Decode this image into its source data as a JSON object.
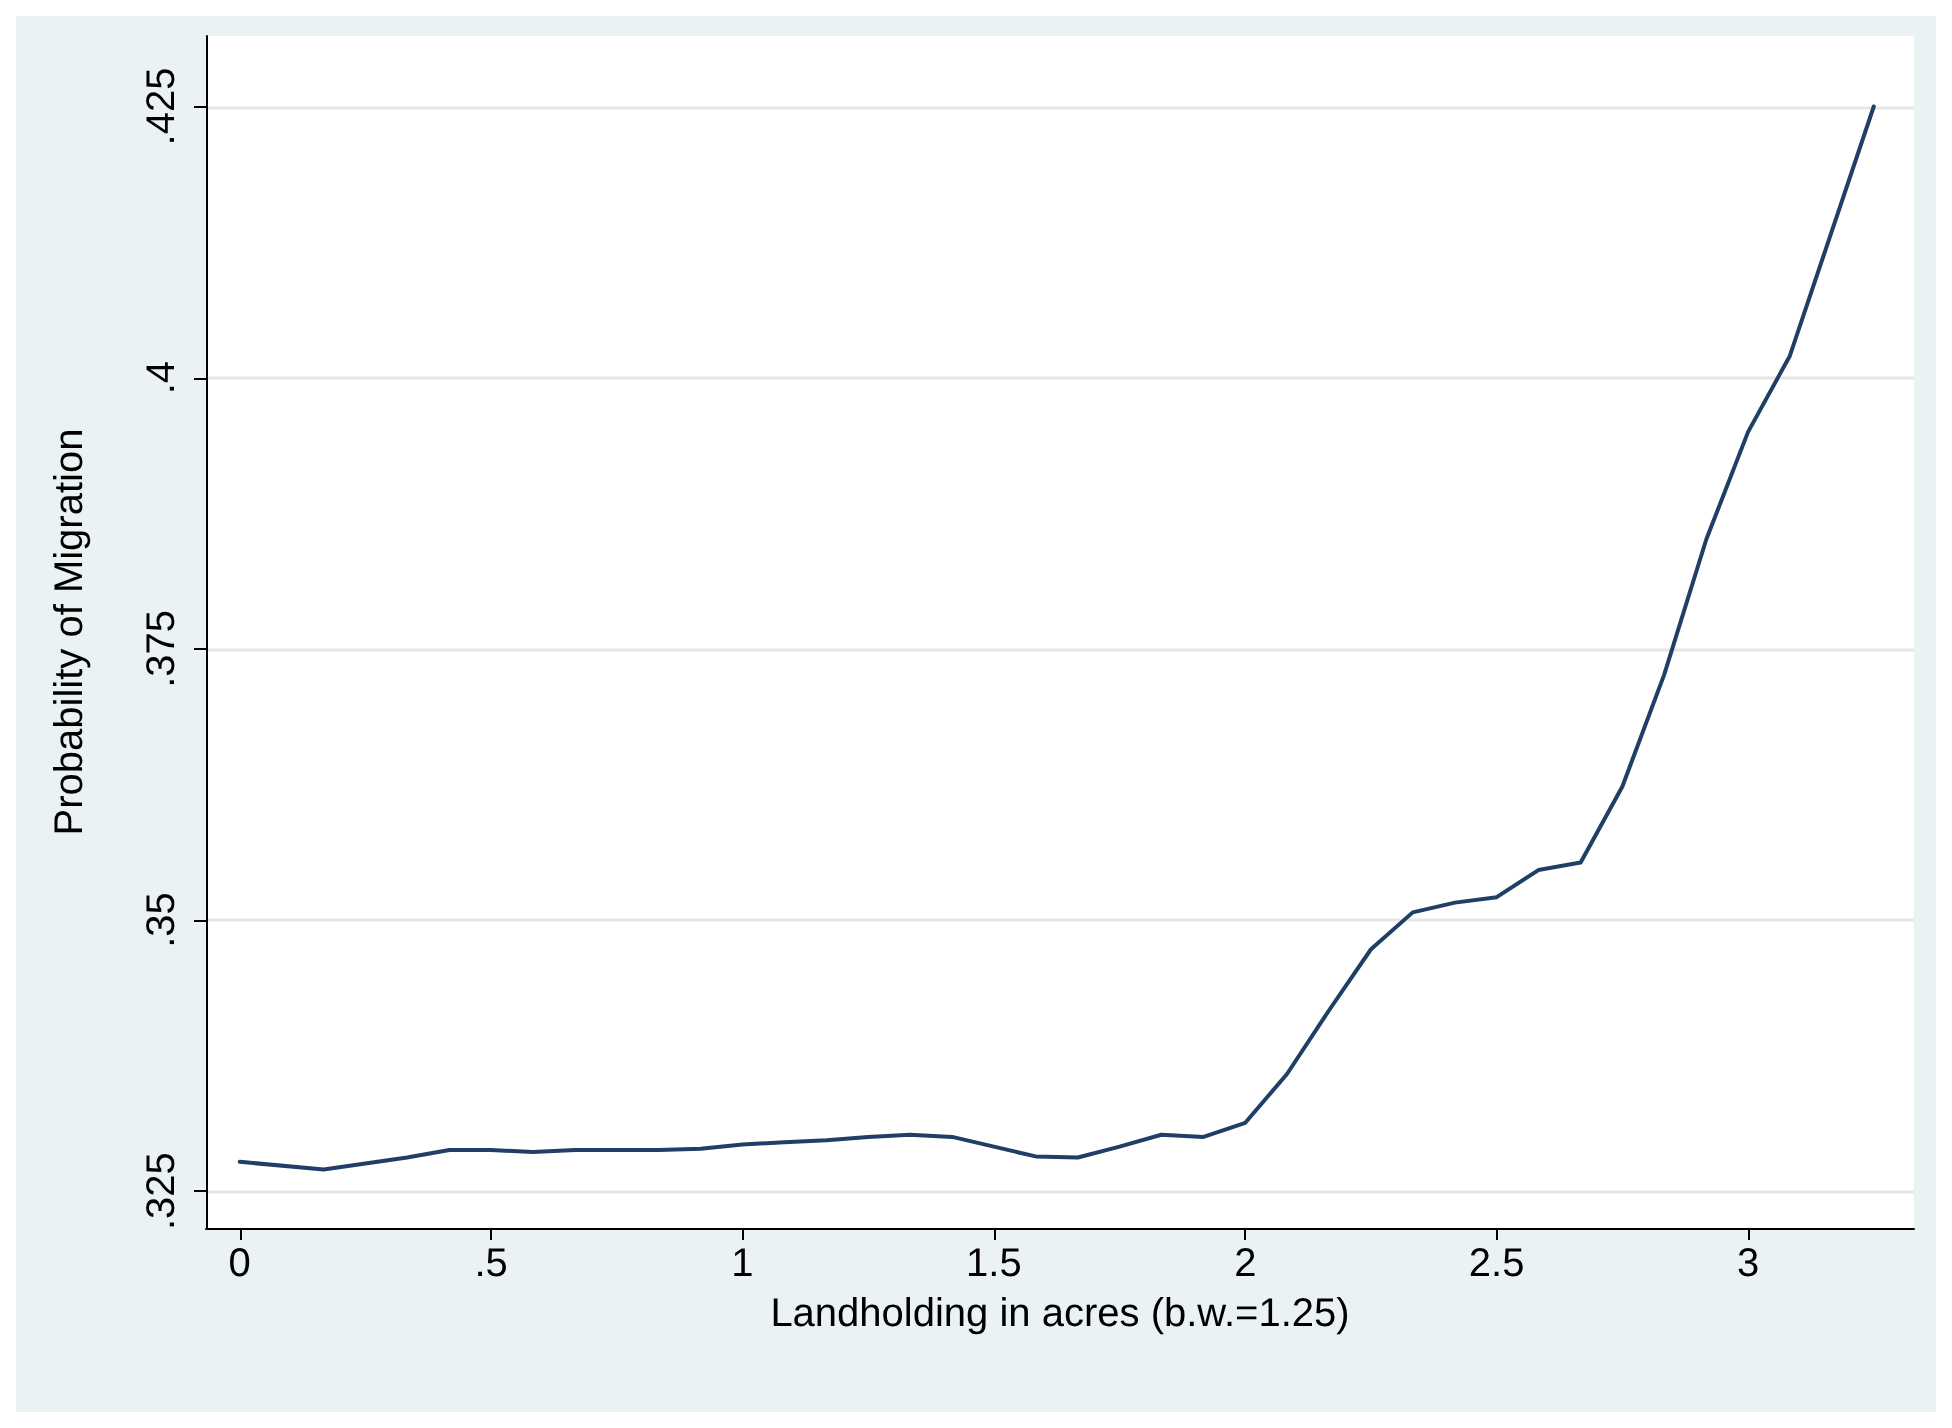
{
  "chart_data": {
    "type": "line",
    "xlabel": "Landholding in acres (b.w.=1.25)",
    "ylabel": "Probability of Migration",
    "x": [
      0,
      0.167,
      0.333,
      0.417,
      0.5,
      0.583,
      0.667,
      0.75,
      0.833,
      0.917,
      1.0,
      1.083,
      1.167,
      1.25,
      1.333,
      1.417,
      1.5,
      1.583,
      1.667,
      1.75,
      1.833,
      1.917,
      2.0,
      2.083,
      2.167,
      2.25,
      2.333,
      2.417,
      2.5,
      2.583,
      2.667,
      2.75,
      2.833,
      2.917,
      3.0,
      3.083,
      3.25
    ],
    "series": [
      {
        "color": "#1f3f66",
        "values": [
          0.3277,
          0.327,
          0.3281,
          0.3288,
          0.3288,
          0.3286,
          0.3288,
          0.3288,
          0.3288,
          0.3289,
          0.3293,
          0.3295,
          0.3297,
          0.33,
          0.3302,
          0.33,
          0.3291,
          0.3282,
          0.3281,
          0.3291,
          0.3302,
          0.33,
          0.3313,
          0.3358,
          0.3417,
          0.3473,
          0.3507,
          0.3516,
          0.3521,
          0.3546,
          0.3553,
          0.3623,
          0.3726,
          0.3851,
          0.395,
          0.402,
          0.425
        ]
      }
    ],
    "xlim": [
      -0.067,
      3.33
    ],
    "xticks": [
      0,
      {
        "value": 0.5,
        "label": ".5"
      },
      1,
      1.5,
      2,
      2.5,
      3
    ],
    "ylim": [
      0.3216,
      0.4315
    ],
    "yticks": [
      {
        "value": 0.325,
        "label": ".325"
      },
      {
        "value": 0.35,
        "label": ".35"
      },
      {
        "value": 0.375,
        "label": ".375"
      },
      {
        "value": 0.4,
        "label": ".4"
      },
      {
        "value": 0.425,
        "label": ".425"
      }
    ],
    "grid": "y",
    "marker": "none",
    "line_style": "solid"
  }
}
